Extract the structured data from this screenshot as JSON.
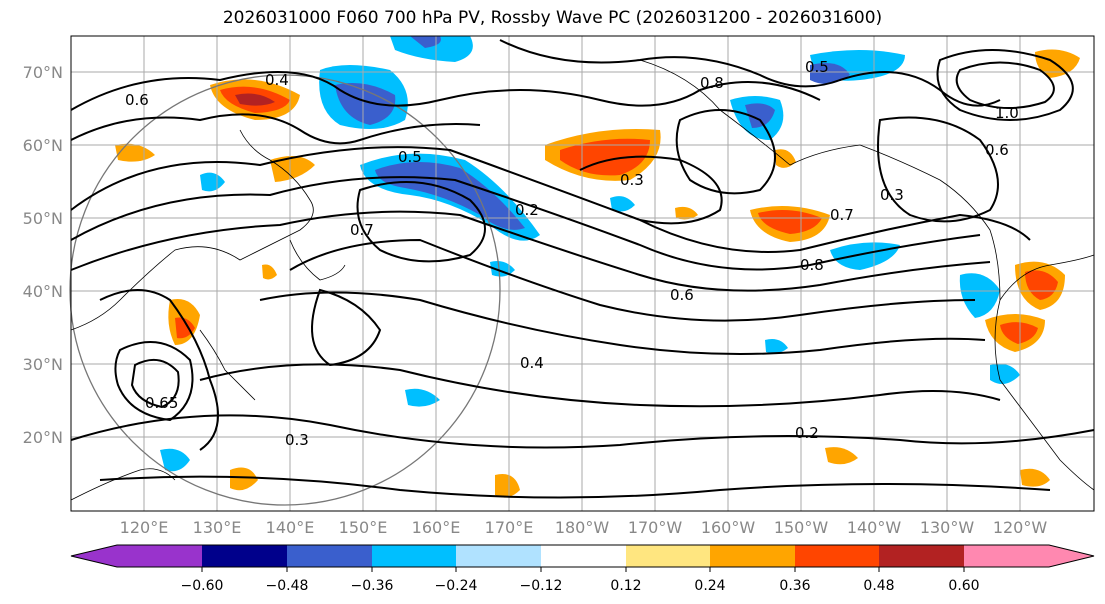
{
  "title": "2026031000 F060 700 hPa PV, Rossby Wave PC (2026031200 - 2026031600)",
  "lat_labels": [
    "70°N",
    "60°N",
    "50°N",
    "40°N",
    "30°N",
    "20°N"
  ],
  "lon_labels": [
    "120°E",
    "130°E",
    "140°E",
    "150°E",
    "160°E",
    "170°E",
    "180°W",
    "170°W",
    "160°W",
    "150°W",
    "140°W",
    "130°W",
    "120°W"
  ],
  "contour_labels": [
    "0.4",
    "0.6",
    "0.5",
    "0.8",
    "0.3",
    "0.2",
    "0.7",
    "1.0",
    "0.6",
    "0.3",
    "0.4",
    "0.2",
    "0.6",
    "0.8",
    "0.7",
    "0.5",
    "0.65",
    "0.3"
  ],
  "colorbar": {
    "ticks": [
      "−0.60",
      "−0.48",
      "−0.36",
      "−0.24",
      "−0.12",
      "0.12",
      "0.24",
      "0.36",
      "0.48",
      "0.60"
    ],
    "colors": [
      "#9933cc",
      "#00008b",
      "#3a5fcd",
      "#00bfff",
      "#b0e2ff",
      "#ffffff",
      "#ffe680",
      "#ffa500",
      "#ff4500",
      "#b22222",
      "#ff88b0"
    ]
  }
}
